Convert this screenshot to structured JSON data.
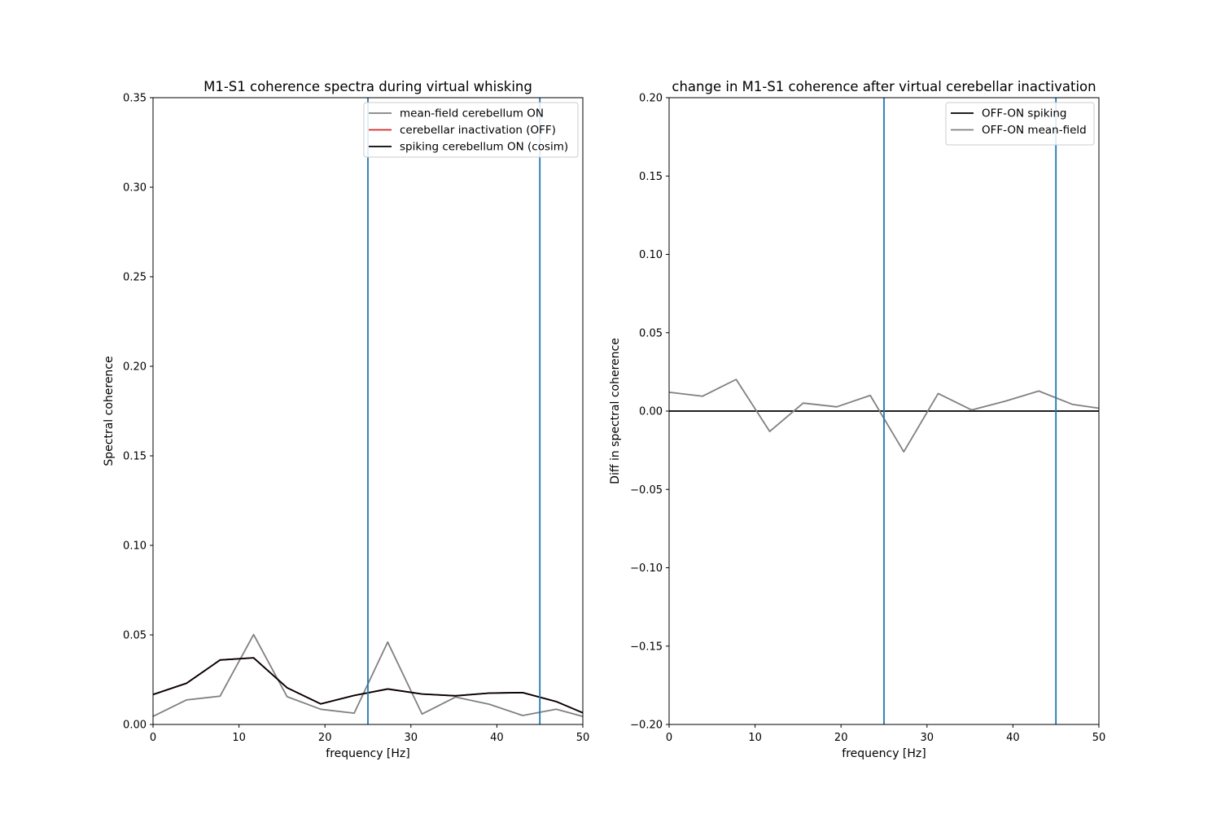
{
  "colors": {
    "vline": "#1f77b4",
    "gray": "#808080",
    "red": "#d62728",
    "black": "#000000"
  },
  "chart_data": [
    {
      "type": "line",
      "title": "M1-S1 coherence spectra during virtual whisking",
      "xlabel": "frequency [Hz]",
      "ylabel": "Spectral coherence",
      "xlim": [
        0,
        50
      ],
      "ylim": [
        0,
        0.35
      ],
      "xticks": [
        0,
        10,
        20,
        30,
        40,
        50
      ],
      "yticks": [
        0.0,
        0.05,
        0.1,
        0.15,
        0.2,
        0.25,
        0.3,
        0.35
      ],
      "ytick_labels": [
        "0.00",
        "0.05",
        "0.10",
        "0.15",
        "0.20",
        "0.25",
        "0.30",
        "0.35"
      ],
      "vlines": [
        25,
        45
      ],
      "legend_position": "upper right",
      "x": [
        0,
        3.9,
        7.8,
        11.7,
        15.6,
        19.5,
        23.4,
        27.3,
        31.3,
        35.2,
        39.1,
        43.0,
        46.9,
        50
      ],
      "series": [
        {
          "name": "mean-field cerebellum ON",
          "color": "#808080",
          "values": [
            0.0045,
            0.0137,
            0.0158,
            0.0502,
            0.0155,
            0.0085,
            0.0063,
            0.046,
            0.0058,
            0.0153,
            0.0113,
            0.005,
            0.0085,
            0.0045
          ]
        },
        {
          "name": "cerebellar inactivation (OFF)",
          "color": "#d62728",
          "values": [
            0.0167,
            0.023,
            0.036,
            0.0372,
            0.0205,
            0.0115,
            0.0162,
            0.0198,
            0.017,
            0.016,
            0.0175,
            0.0178,
            0.0128,
            0.0065
          ]
        },
        {
          "name": "spiking cerebellum ON (cosim)",
          "color": "#000000",
          "values": [
            0.0167,
            0.023,
            0.036,
            0.0372,
            0.0205,
            0.0115,
            0.0162,
            0.0198,
            0.017,
            0.016,
            0.0175,
            0.0178,
            0.0128,
            0.0065
          ]
        }
      ]
    },
    {
      "type": "line",
      "title": "change in M1-S1 coherence after virtual cerebellar inactivation",
      "xlabel": "frequency [Hz]",
      "ylabel": "Diff in spectral coherence",
      "xlim": [
        0,
        50
      ],
      "ylim": [
        -0.2,
        0.2
      ],
      "xticks": [
        0,
        10,
        20,
        30,
        40,
        50
      ],
      "yticks": [
        -0.2,
        -0.15,
        -0.1,
        -0.05,
        0.0,
        0.05,
        0.1,
        0.15,
        0.2
      ],
      "ytick_labels": [
        "−0.20",
        "−0.15",
        "−0.10",
        "−0.05",
        "0.00",
        "0.05",
        "0.10",
        "0.15",
        "0.20"
      ],
      "vlines": [
        25,
        45
      ],
      "legend_position": "upper right",
      "x": [
        0,
        3.9,
        7.8,
        11.7,
        15.6,
        19.5,
        23.4,
        27.3,
        31.3,
        35.2,
        39.1,
        43.0,
        46.9,
        50
      ],
      "series": [
        {
          "name": "OFF-ON spiking",
          "color": "#000000",
          "values": [
            0,
            0,
            0,
            0,
            0,
            0,
            0,
            0,
            0,
            0,
            0,
            0,
            0,
            0
          ]
        },
        {
          "name": "OFF-ON mean-field",
          "color": "#808080",
          "values": [
            0.012,
            0.0095,
            0.0202,
            -0.013,
            0.0051,
            0.0027,
            0.01,
            -0.026,
            0.0112,
            0.0007,
            0.0063,
            0.0128,
            0.0043,
            0.0018
          ]
        }
      ]
    }
  ]
}
